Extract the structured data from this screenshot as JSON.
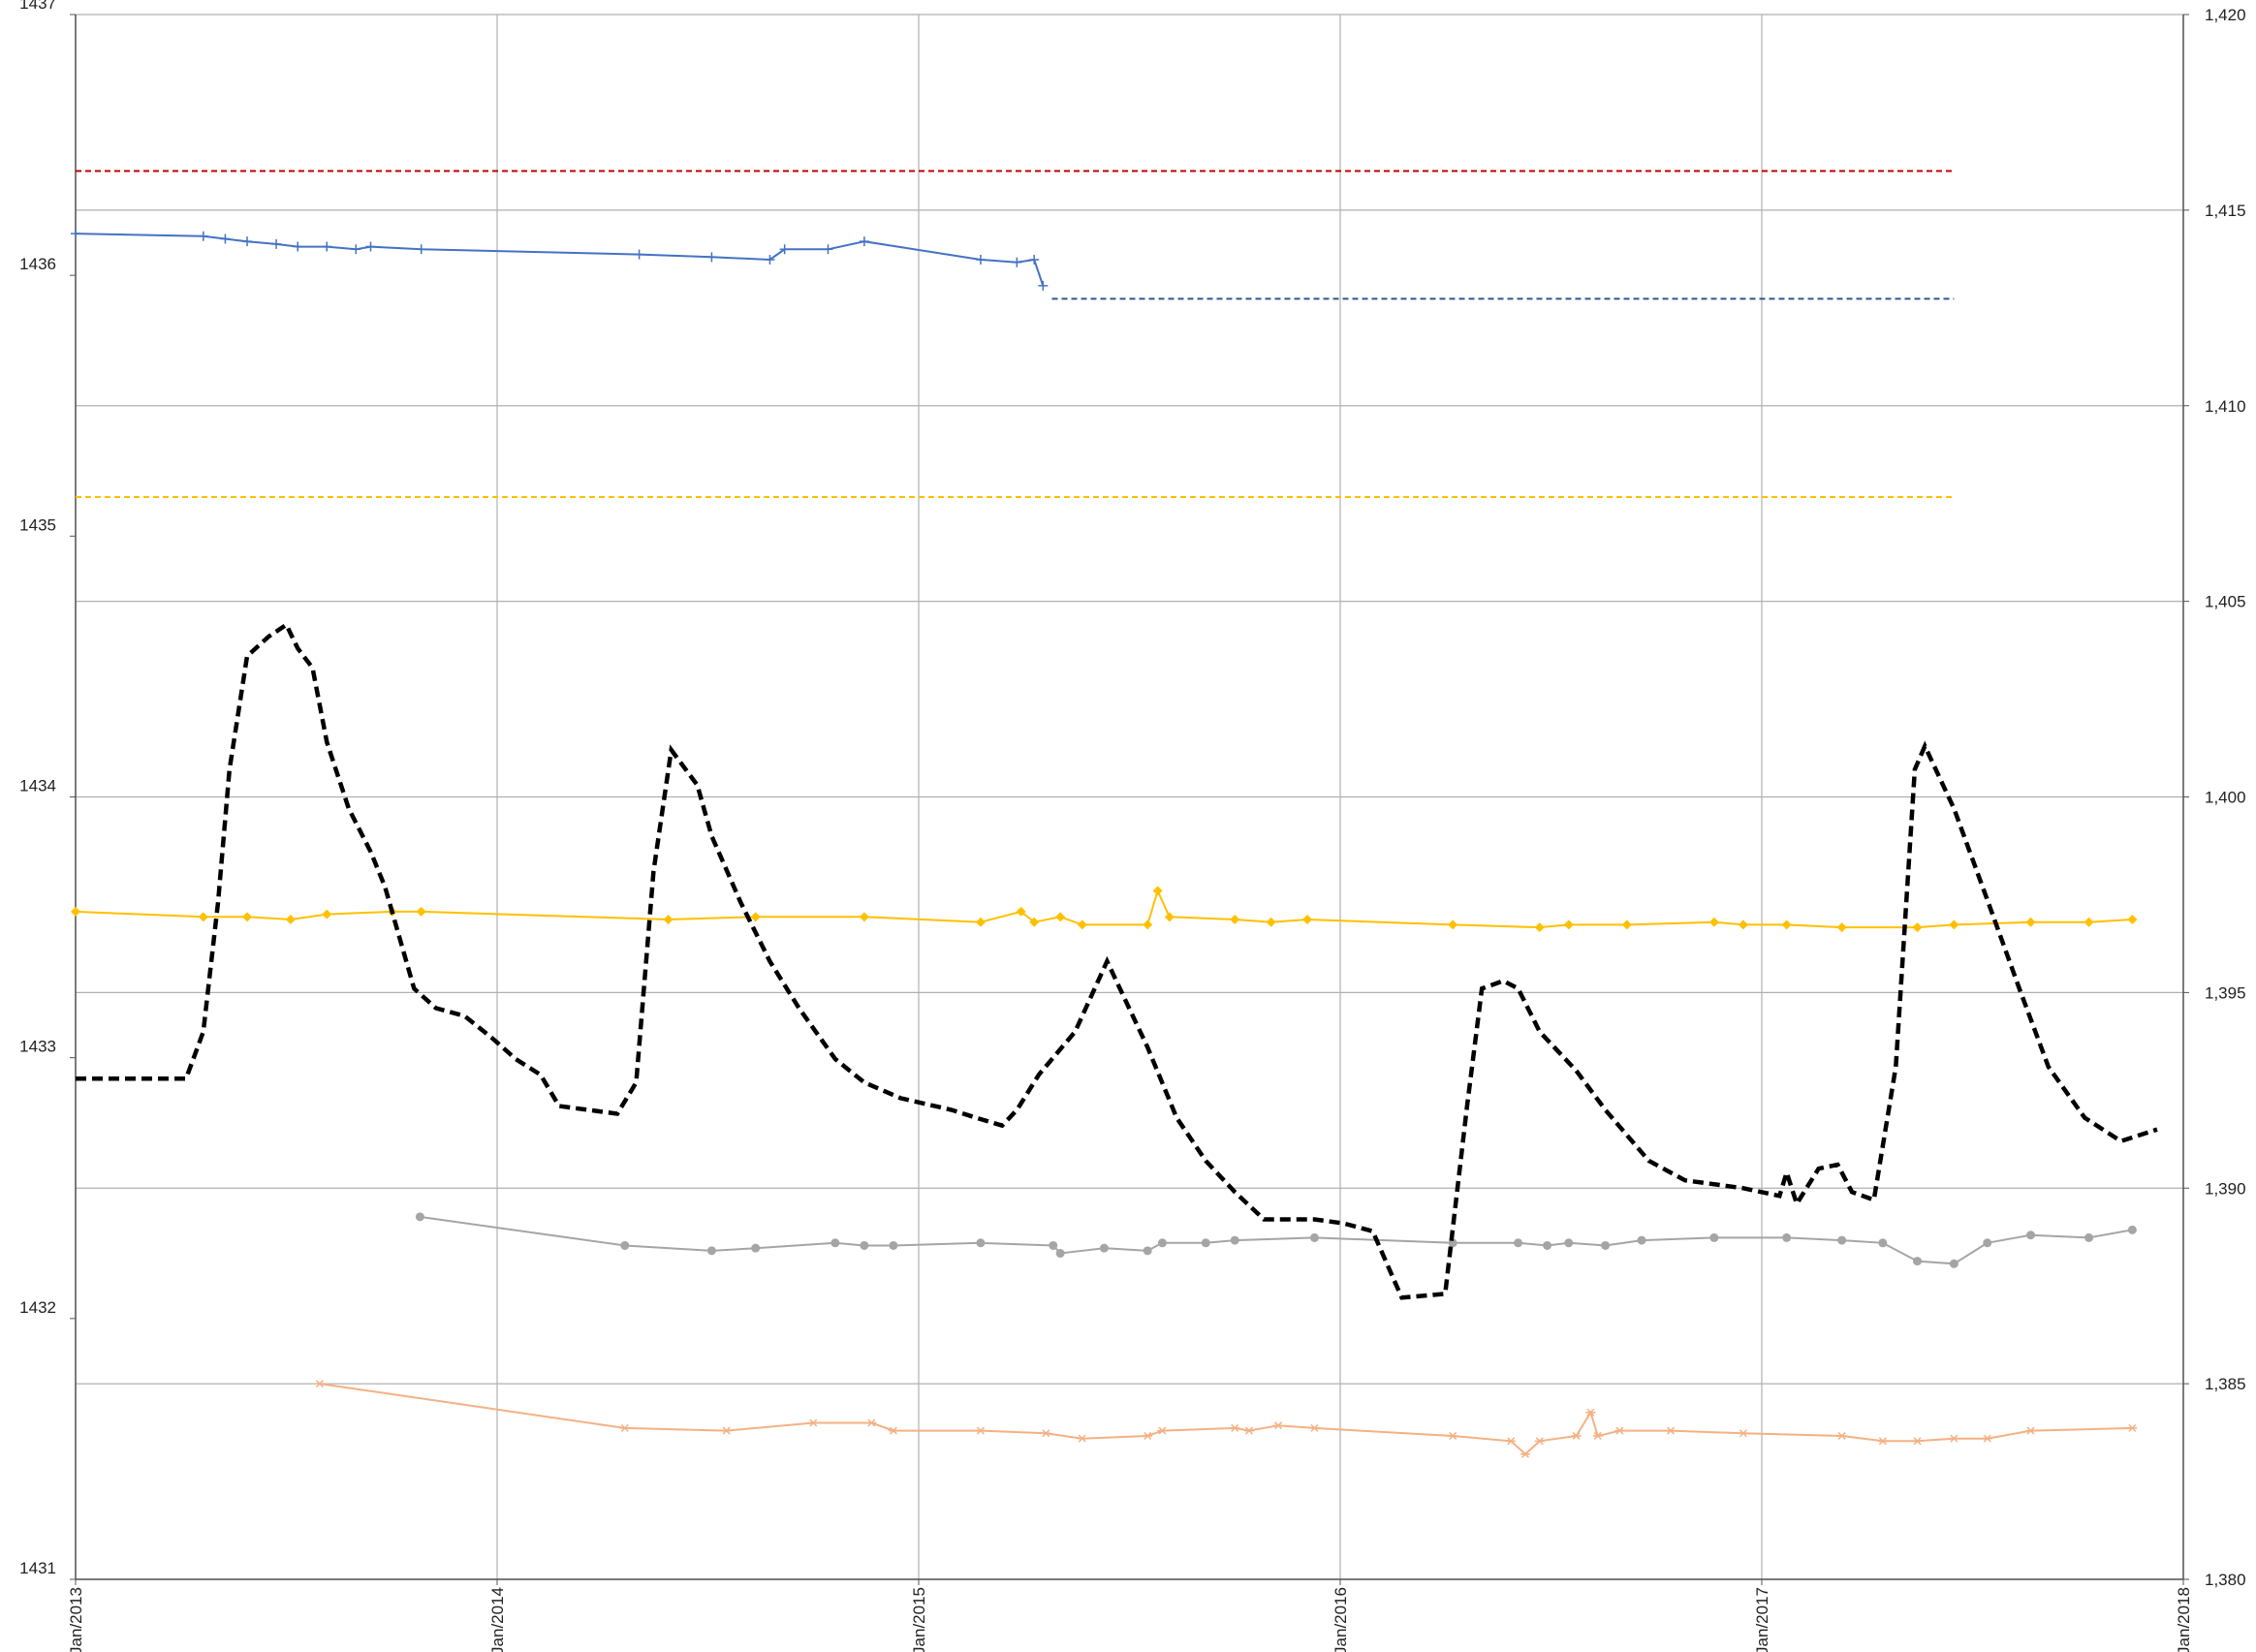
{
  "chart_data": {
    "type": "line",
    "xlim": [
      2013,
      2018
    ],
    "xticks": [
      {
        "value": 2013,
        "label": "Jan/2013"
      },
      {
        "value": 2014,
        "label": "Jan/2014"
      },
      {
        "value": 2015,
        "label": "Jan/2015"
      },
      {
        "value": 2016,
        "label": "Jan/2016"
      },
      {
        "value": 2017,
        "label": "Jan/2017"
      },
      {
        "value": 2018,
        "label": "Jan/2018"
      }
    ],
    "ylim": [
      1431,
      1437
    ],
    "yticks": [
      1431,
      1432,
      1433,
      1434,
      1435,
      1436,
      1437
    ],
    "y2lim": [
      1380,
      1420
    ],
    "y2ticks": [
      {
        "value": 1380,
        "label": "1,380"
      },
      {
        "value": 1385,
        "label": "1,385"
      },
      {
        "value": 1390,
        "label": "1,390"
      },
      {
        "value": 1395,
        "label": "1,395"
      },
      {
        "value": 1400,
        "label": "1,400"
      },
      {
        "value": 1405,
        "label": "1,405"
      },
      {
        "value": 1410,
        "label": "1,410"
      },
      {
        "value": 1415,
        "label": "1,415"
      },
      {
        "value": 1420,
        "label": "1,420"
      }
    ],
    "grid": true,
    "series": [
      {
        "color": "#c00000",
        "style": "dashed",
        "axis": "y",
        "x": [
          2013,
          2017.456
        ],
        "values": [
          1436.4,
          1436.4
        ]
      },
      {
        "color": "#2f5597",
        "style": "dashed",
        "axis": "y",
        "x": [
          2015.316,
          2017.456
        ],
        "values": [
          1435.91,
          1435.91
        ]
      },
      {
        "color": "#ffc000",
        "style": "dashed",
        "axis": "y",
        "x": [
          2013,
          2017.456
        ],
        "values": [
          1435.15,
          1435.15
        ]
      },
      {
        "color": "#4472c4",
        "style": "solid",
        "marker": "plus",
        "axis": "y",
        "x": [
          2013,
          2013.303,
          2013.355,
          2013.407,
          2013.476,
          2013.527,
          2013.596,
          2013.665,
          2013.7,
          2013.82,
          2014.337,
          2014.509,
          2014.647,
          2014.682,
          2014.785,
          2014.871,
          2015.147,
          2015.233,
          2015.274,
          2015.295
        ],
        "values": [
          1436.16,
          1436.15,
          1436.14,
          1436.13,
          1436.12,
          1436.11,
          1436.11,
          1436.1,
          1436.11,
          1436.1,
          1436.08,
          1436.07,
          1436.06,
          1436.1,
          1436.1,
          1436.13,
          1436.06,
          1436.05,
          1436.06,
          1435.96
        ]
      },
      {
        "color": "#ffc000",
        "style": "solid",
        "marker": "diamond",
        "axis": "y",
        "x": [
          2013,
          2013.303,
          2013.407,
          2013.51,
          2013.596,
          2013.751,
          2013.82,
          2014.406,
          2014.613,
          2014.871,
          2015.147,
          2015.243,
          2015.274,
          2015.336,
          2015.388,
          2015.543,
          2015.567,
          2015.595,
          2015.75,
          2015.836,
          2015.922,
          2016.267,
          2016.473,
          2016.542,
          2016.68,
          2016.887,
          2016.956,
          2017.059,
          2017.19,
          2017.369,
          2017.456,
          2017.638,
          2017.776,
          2017.879
        ],
        "values": [
          1433.56,
          1433.54,
          1433.54,
          1433.53,
          1433.55,
          1433.56,
          1433.56,
          1433.53,
          1433.54,
          1433.54,
          1433.52,
          1433.56,
          1433.52,
          1433.54,
          1433.51,
          1433.51,
          1433.64,
          1433.54,
          1433.53,
          1433.52,
          1433.53,
          1433.51,
          1433.5,
          1433.51,
          1433.51,
          1433.52,
          1433.51,
          1433.51,
          1433.5,
          1433.5,
          1433.51,
          1433.52,
          1433.52,
          1433.53
        ]
      },
      {
        "color": "#a5a5a5",
        "style": "solid",
        "marker": "circle",
        "axis": "y",
        "x": [
          2013.817,
          2014.303,
          2014.509,
          2014.613,
          2014.802,
          2014.871,
          2014.94,
          2015.147,
          2015.319,
          2015.336,
          2015.44,
          2015.543,
          2015.578,
          2015.681,
          2015.75,
          2015.939,
          2016.267,
          2016.422,
          2016.491,
          2016.542,
          2016.629,
          2016.715,
          2016.887,
          2017.059,
          2017.19,
          2017.287,
          2017.369,
          2017.456,
          2017.535,
          2017.638,
          2017.776,
          2017.879
        ],
        "values": [
          1432.39,
          1432.28,
          1432.26,
          1432.27,
          1432.29,
          1432.28,
          1432.28,
          1432.29,
          1432.28,
          1432.25,
          1432.27,
          1432.26,
          1432.29,
          1432.29,
          1432.3,
          1432.31,
          1432.29,
          1432.29,
          1432.28,
          1432.29,
          1432.28,
          1432.3,
          1432.31,
          1432.31,
          1432.3,
          1432.29,
          1432.22,
          1432.21,
          1432.29,
          1432.32,
          1432.31,
          1432.34
        ]
      },
      {
        "color": "#f4b183",
        "style": "solid",
        "marker": "star",
        "axis": "y",
        "x": [
          2013.579,
          2014.303,
          2014.544,
          2014.75,
          2014.888,
          2014.94,
          2015.147,
          2015.302,
          2015.388,
          2015.543,
          2015.578,
          2015.75,
          2015.784,
          2015.853,
          2015.939,
          2016.267,
          2016.405,
          2016.439,
          2016.473,
          2016.56,
          2016.594,
          2016.611,
          2016.663,
          2016.784,
          2016.956,
          2017.19,
          2017.287,
          2017.369,
          2017.456,
          2017.535,
          2017.638,
          2017.879
        ],
        "values": [
          1431.75,
          1431.58,
          1431.57,
          1431.6,
          1431.6,
          1431.57,
          1431.57,
          1431.56,
          1431.54,
          1431.55,
          1431.57,
          1431.58,
          1431.57,
          1431.59,
          1431.58,
          1431.55,
          1431.53,
          1431.48,
          1431.53,
          1431.55,
          1431.64,
          1431.55,
          1431.57,
          1431.57,
          1431.56,
          1431.55,
          1431.53,
          1431.53,
          1431.54,
          1431.54,
          1431.57,
          1431.58
        ]
      },
      {
        "color": "#000000",
        "style": "heavy-dashed",
        "axis": "y2",
        "x": [
          2013,
          2013.262,
          2013.303,
          2013.338,
          2013.365,
          2013.407,
          2013.458,
          2013.5,
          2013.527,
          2013.562,
          2013.596,
          2013.648,
          2013.7,
          2013.734,
          2013.803,
          2013.855,
          2013.923,
          2013.992,
          2014.044,
          2014.103,
          2014.147,
          2014.216,
          2014.285,
          2014.33,
          2014.371,
          2014.413,
          2014.475,
          2014.509,
          2014.578,
          2014.647,
          2014.716,
          2014.802,
          2014.871,
          2014.957,
          2015.078,
          2015.136,
          2015.198,
          2015.233,
          2015.285,
          2015.371,
          2015.447,
          2015.543,
          2015.612,
          2015.681,
          2015.75,
          2015.819,
          2015.939,
          2016.008,
          2016.077,
          2016.146,
          2016.249,
          2016.301,
          2016.336,
          2016.387,
          2016.422,
          2016.473,
          2016.56,
          2016.629,
          2016.732,
          2016.818,
          2016.956,
          2017.042,
          2017.059,
          2017.083,
          2017.135,
          2017.18,
          2017.214,
          2017.266,
          2017.318,
          2017.363,
          2017.387,
          2017.456,
          2017.524,
          2017.611,
          2017.68,
          2017.766,
          2017.852,
          2017.938
        ],
        "values": [
          1392.8,
          1392.8,
          1394.0,
          1397.3,
          1400.7,
          1403.6,
          1404.1,
          1404.4,
          1403.8,
          1403.3,
          1401.4,
          1399.7,
          1398.6,
          1397.7,
          1395.1,
          1394.6,
          1394.4,
          1393.8,
          1393.3,
          1392.9,
          1392.1,
          1392.0,
          1391.9,
          1392.7,
          1398.1,
          1401.2,
          1400.3,
          1399.0,
          1397.3,
          1395.8,
          1394.6,
          1393.3,
          1392.7,
          1392.3,
          1392.0,
          1391.8,
          1391.6,
          1392.0,
          1392.9,
          1394.0,
          1395.8,
          1393.6,
          1391.8,
          1390.7,
          1389.9,
          1389.2,
          1389.2,
          1389.1,
          1388.9,
          1387.2,
          1387.3,
          1392.1,
          1395.1,
          1395.3,
          1395.1,
          1394.0,
          1393.0,
          1392.0,
          1390.7,
          1390.2,
          1390.0,
          1389.8,
          1390.4,
          1389.6,
          1390.5,
          1390.6,
          1389.9,
          1389.7,
          1393.1,
          1400.7,
          1401.3,
          1399.7,
          1397.7,
          1395.1,
          1393.1,
          1391.8,
          1391.2,
          1391.5
        ]
      }
    ]
  }
}
